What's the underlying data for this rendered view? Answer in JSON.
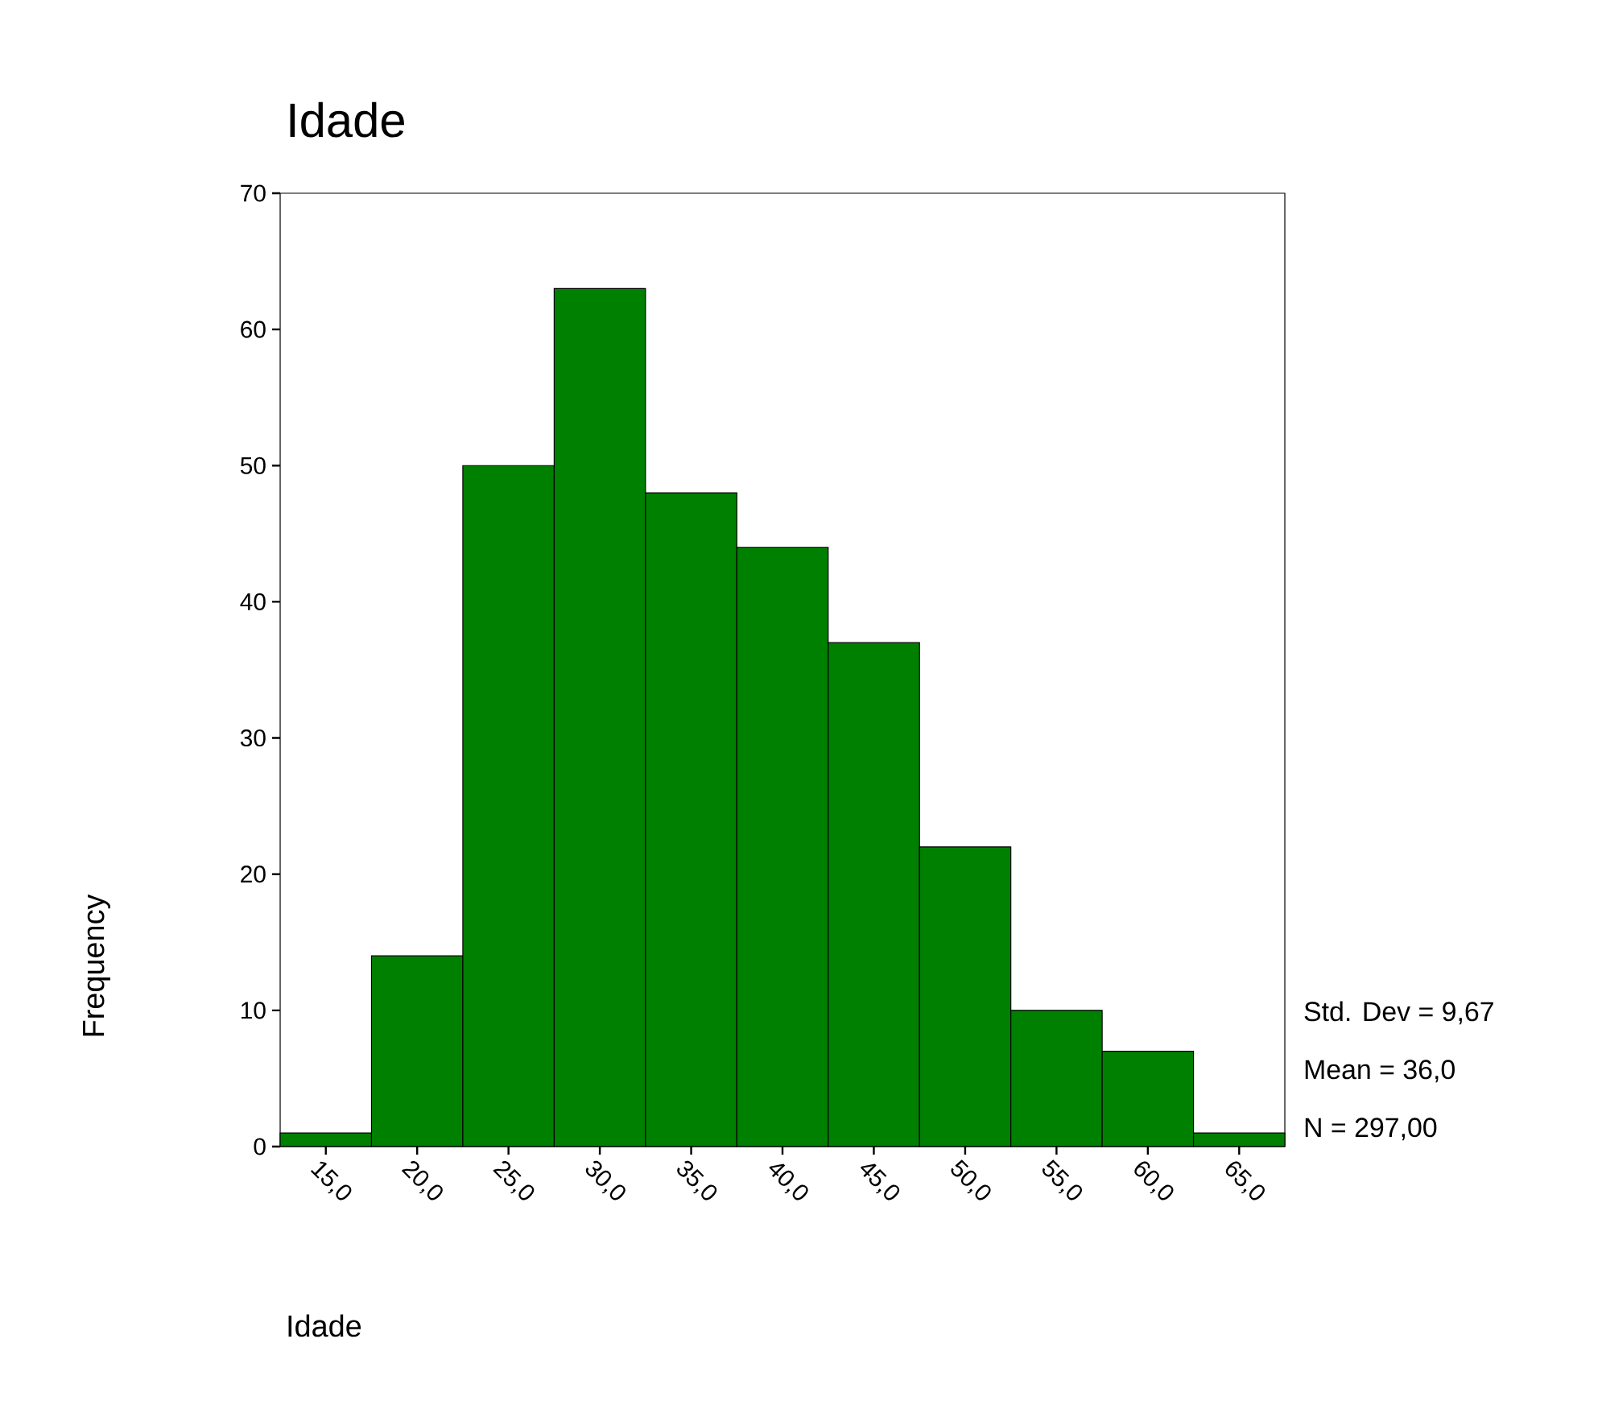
{
  "chart_data": {
    "type": "histogram",
    "title": "Idade",
    "xlabel": "Idade",
    "ylabel": "Frequency",
    "color": "#008000",
    "bins": [
      12.5,
      17.5,
      22.5,
      27.5,
      32.5,
      37.5,
      42.5,
      47.5,
      52.5,
      57.5,
      62.5,
      67.5
    ],
    "values": [
      1,
      14,
      50,
      63,
      48,
      44,
      37,
      22,
      10,
      7,
      1
    ],
    "xlim": [
      12.5,
      67.5
    ],
    "ylim": [
      0,
      70
    ],
    "xticks": [
      {
        "value": 15,
        "label": "15,0"
      },
      {
        "value": 20,
        "label": "20,0"
      },
      {
        "value": 25,
        "label": "25,0"
      },
      {
        "value": 30,
        "label": "30,0"
      },
      {
        "value": 35,
        "label": "35,0"
      },
      {
        "value": 40,
        "label": "40,0"
      },
      {
        "value": 45,
        "label": "45,0"
      },
      {
        "value": 50,
        "label": "50,0"
      },
      {
        "value": 55,
        "label": "55,0"
      },
      {
        "value": 60,
        "label": "60,0"
      },
      {
        "value": 65,
        "label": "65,0"
      }
    ],
    "yticks": [
      0,
      10,
      20,
      30,
      40,
      50,
      60,
      70
    ],
    "annotations": [
      "Std. Dev = 9,67",
      "Mean = 36,0",
      "N = 297,00"
    ]
  }
}
